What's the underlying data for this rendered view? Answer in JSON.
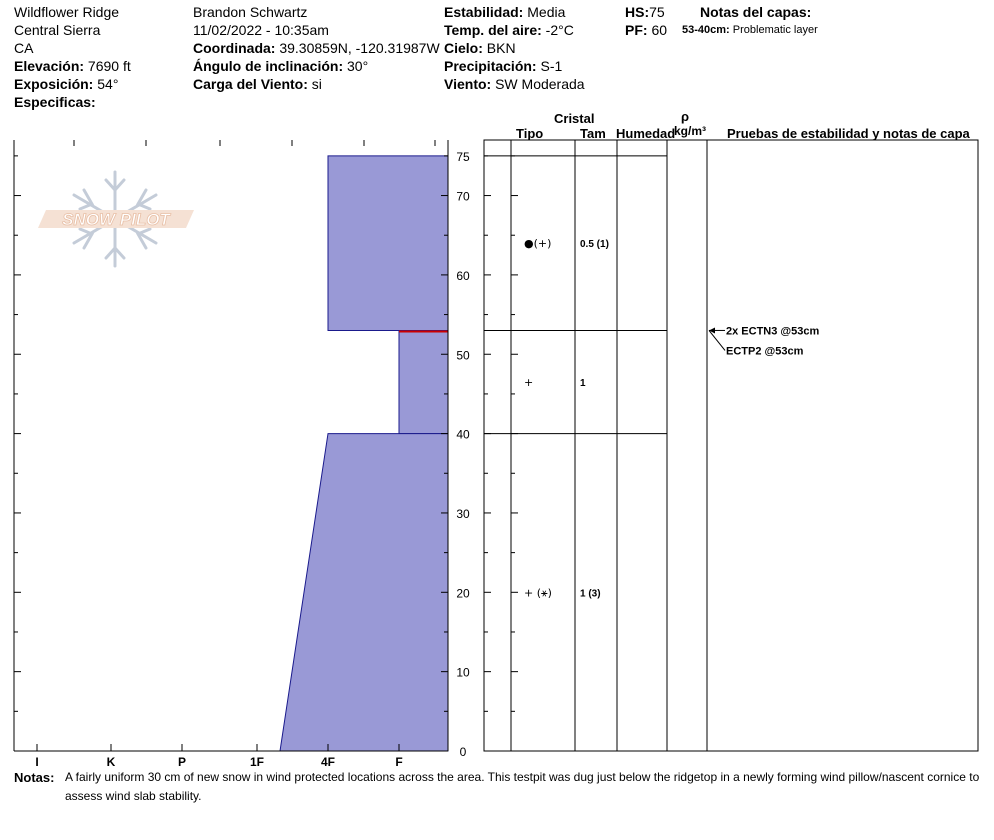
{
  "header": {
    "location": "Wildflower Ridge",
    "range": "Central Sierra",
    "state": "CA",
    "elevation_label": "Elevación:",
    "elevation_value": "7690 ft",
    "aspect_label": "Exposición:",
    "aspect_value": "54°",
    "specifics_label": "Especificas:",
    "observer": "Brandon Schwartz",
    "datetime": "11/02/2022 - 10:35am",
    "coord_label": "Coordinada:",
    "coord_value": "39.30859N, -120.31987W",
    "slope_label": "Ángulo de inclinación:",
    "slope_value": "30°",
    "windload_label": "Carga del Viento:",
    "windload_value": "si",
    "stability_label": "Estabilidad:",
    "stability_value": "Media",
    "airtemp_label": "Temp. del aire:",
    "airtemp_value": "-2°C",
    "sky_label": "Cielo:",
    "sky_value": "BKN",
    "precip_label": "Precipitación:",
    "precip_value": "S-1",
    "wind_label": "Viento:",
    "wind_value": "SW Moderada",
    "hs_label": "HS:",
    "hs_value": "75",
    "pf_label": "PF:",
    "pf_value": "60",
    "layer_notes_label": "Notas del capas:",
    "layer_note_range": "53-40cm:",
    "layer_note_text": "Problematic layer"
  },
  "logo": {
    "text": "SNOW PILOT"
  },
  "table_headers": {
    "crystal": "Cristal",
    "type": "Tipo",
    "size": "Tam",
    "moisture": "Humedad",
    "rho": "ρ",
    "density_unit": "kg/m³",
    "tests": "Pruebas de estabilidad y notas de capa"
  },
  "chart_data": {
    "type": "area",
    "title": "",
    "ylim": [
      0,
      75
    ],
    "y_ticks": [
      "0",
      "10",
      "20",
      "30",
      "40",
      "50",
      "60",
      "70",
      "75"
    ],
    "x_categories": [
      "I",
      "K",
      "P",
      "1F",
      "4F",
      "F"
    ],
    "hardness_layers": [
      {
        "bottom": 53,
        "top": 75,
        "hardness_bottom": "4F",
        "hardness_top": "4F"
      },
      {
        "bottom": 40,
        "top": 53,
        "hardness_bottom": "F",
        "hardness_top": "F"
      },
      {
        "bottom": 0,
        "top": 40,
        "hardness_bottom": "1F-",
        "hardness_top": "4F"
      }
    ],
    "problem_layer_height": 53,
    "grid": false
  },
  "layers": [
    {
      "crystal": "●(+)",
      "size": "0.5 (1)",
      "top": 75,
      "bottom": 53
    },
    {
      "crystal": "+",
      "size": "1",
      "top": 53,
      "bottom": 40
    },
    {
      "crystal": "+ (⚹)",
      "size": "1 (3)",
      "top": 40,
      "bottom": 0
    }
  ],
  "tests": [
    {
      "text": "2x ECTN3 @53cm",
      "depth": 53
    },
    {
      "text": "ECTP2 @53cm",
      "depth": 53
    }
  ],
  "notes": {
    "label": "Notas:",
    "text": "A fairly uniform 30 cm of new snow in wind protected locations across the area. This testpit was dug just below the ridgetop in a newly forming wind pillow/nascent cornice to assess wind slab stability."
  },
  "colors": {
    "fill": "#9999d6",
    "problem_line": "#cc0000"
  }
}
